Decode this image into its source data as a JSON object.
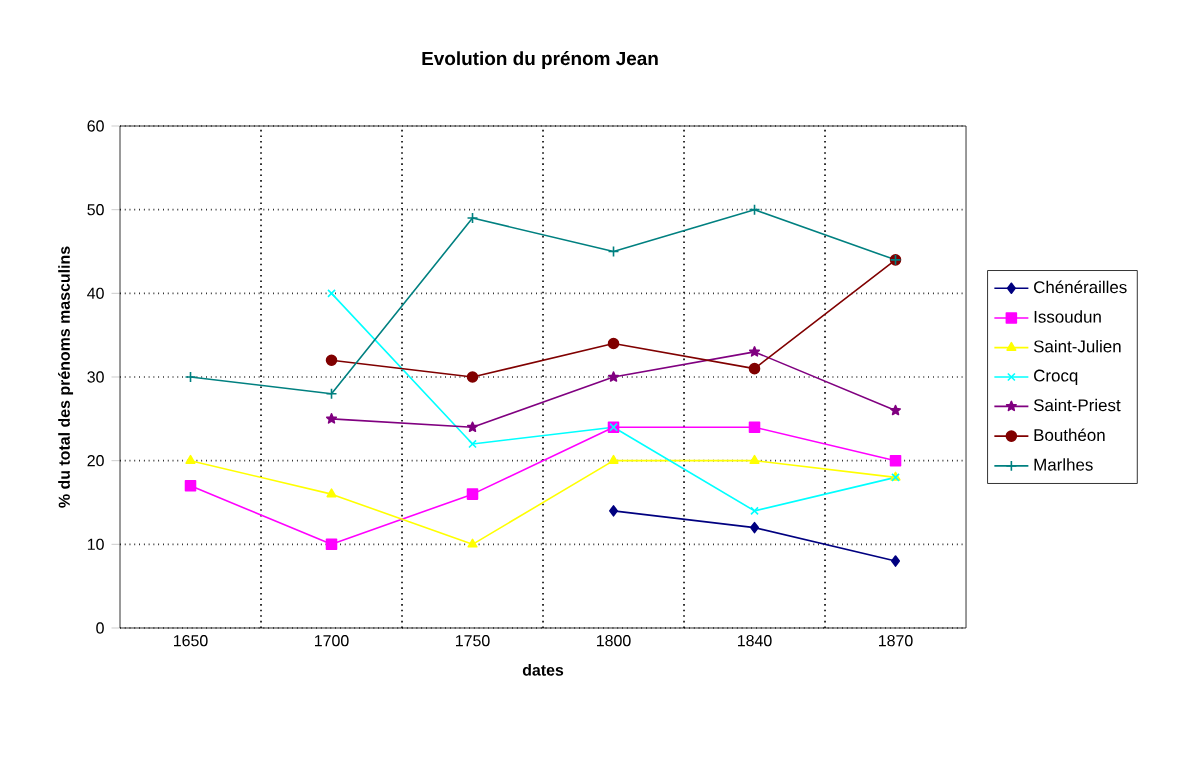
{
  "chart_data": {
    "type": "line",
    "title": "Evolution du prénom Jean",
    "xlabel": "dates",
    "ylabel": "% du total des prénoms masculins",
    "categories": [
      "1650",
      "1700",
      "1750",
      "1800",
      "1840",
      "1870"
    ],
    "ylim": [
      0,
      60
    ],
    "yticks": [
      0,
      10,
      20,
      30,
      40,
      50,
      60
    ],
    "grid": true,
    "legend": "right",
    "line_style": "solid",
    "series": [
      {
        "name": "Chénérailles",
        "color": "#000080",
        "marker": "diamond",
        "values": [
          null,
          null,
          null,
          14,
          12,
          8
        ]
      },
      {
        "name": "Issoudun",
        "color": "#ff00ff",
        "marker": "square",
        "values": [
          17,
          10,
          16,
          24,
          24,
          20
        ]
      },
      {
        "name": "Saint-Julien",
        "color": "#ffff00",
        "marker": "triangle",
        "values": [
          20,
          16,
          10,
          20,
          20,
          18
        ]
      },
      {
        "name": "Crocq",
        "color": "#00ffff",
        "marker": "cross",
        "values": [
          null,
          40,
          22,
          24,
          14,
          18
        ]
      },
      {
        "name": "Saint-Priest",
        "color": "#800080",
        "marker": "star",
        "values": [
          null,
          25,
          24,
          30,
          33,
          26
        ]
      },
      {
        "name": "Bouthéon",
        "color": "#800000",
        "marker": "circle",
        "values": [
          null,
          32,
          30,
          34,
          31,
          44
        ]
      },
      {
        "name": "Marlhes",
        "color": "#008080",
        "marker": "plus",
        "values": [
          30,
          28,
          49,
          45,
          50,
          44
        ]
      }
    ]
  }
}
